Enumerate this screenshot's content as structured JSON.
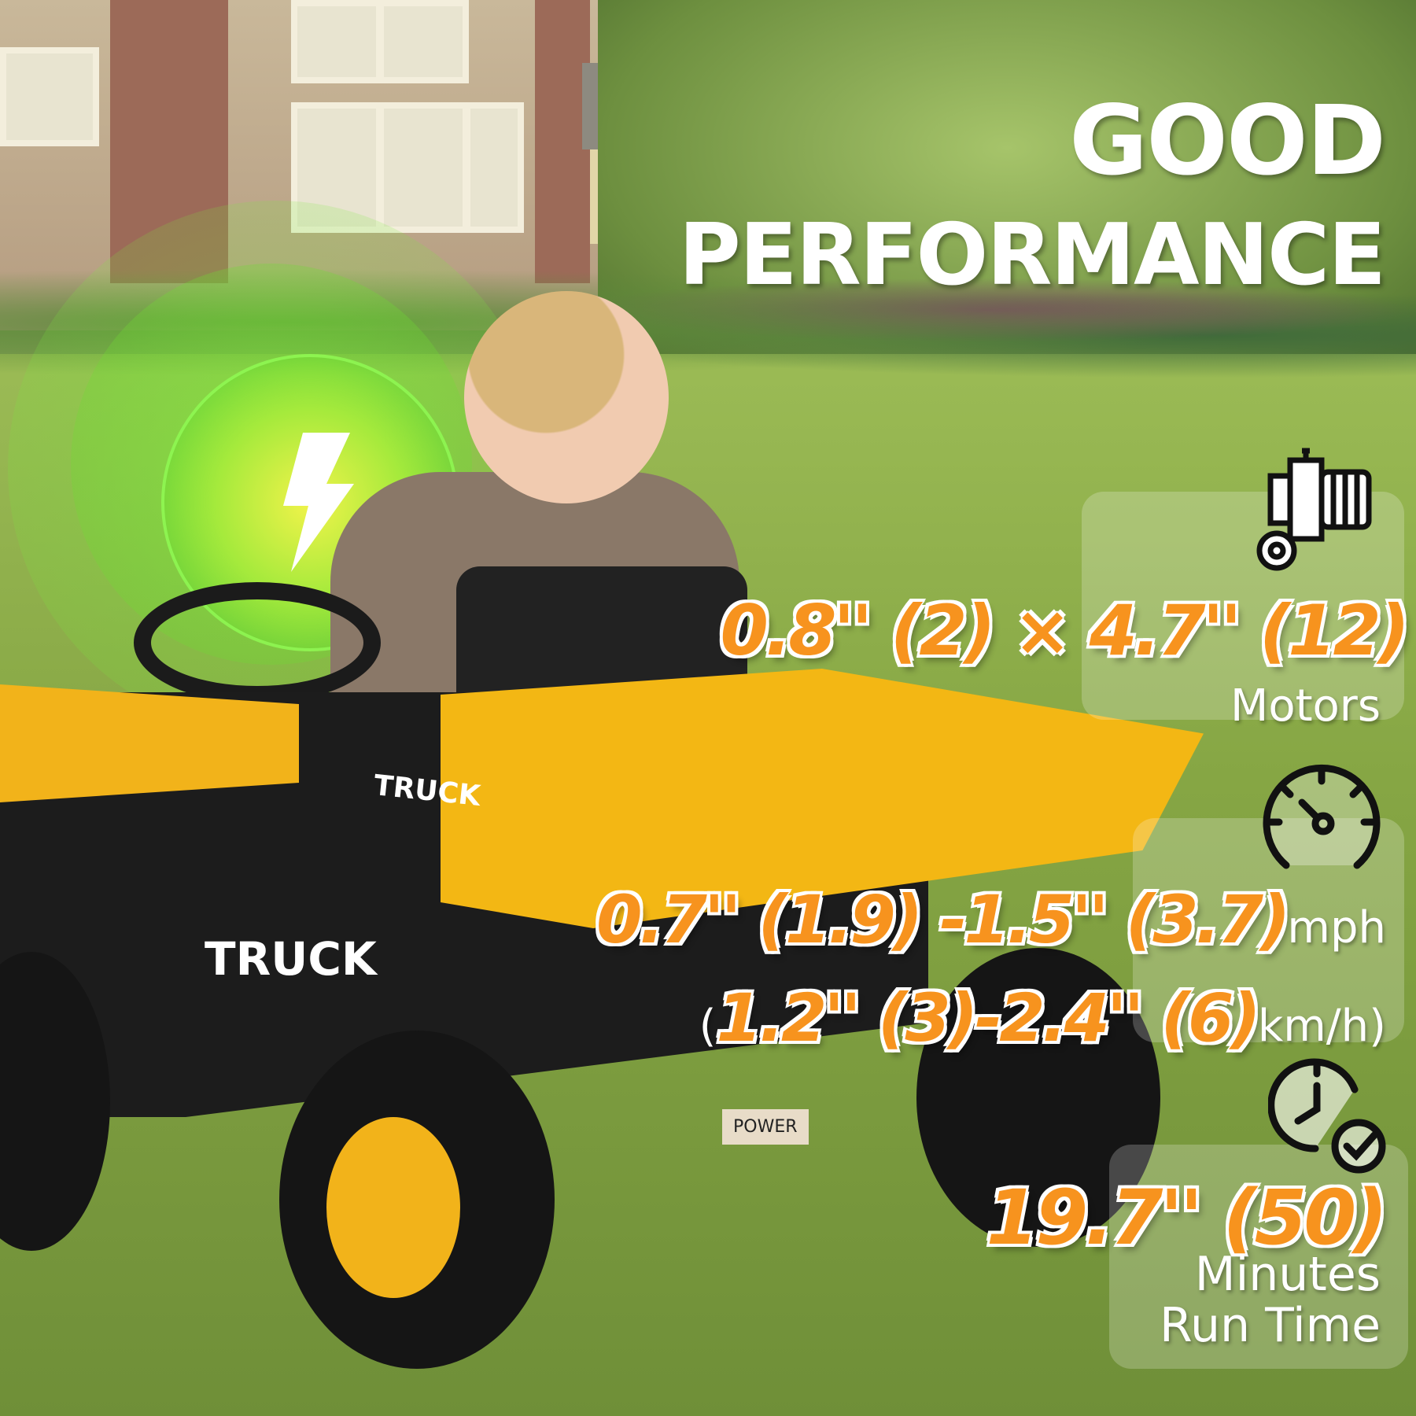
{
  "headline": {
    "line1": "GOOD",
    "line2": "PERFORMANCE"
  },
  "features": [
    {
      "icon": "motor-icon",
      "value": "0.8'' (2)  × 4.7'' (12)",
      "label": "Motors"
    },
    {
      "icon": "speedometer-icon",
      "value_line1": "0.7'' (1.9) -1.5'' (3.7)",
      "unit_line1": "mph",
      "prefix_line2": "(",
      "value_line2": "1.2'' (3)-2.4'' (6)",
      "unit_line2": "km/h)"
    },
    {
      "icon": "clock-check-icon",
      "value": "19.7'' (50)",
      "label_line1": "Minutes",
      "label_line2": "Run Time"
    }
  ],
  "product_text": {
    "side_decal": "TRUCK",
    "front_decal": "TRUCK",
    "button": "POWER"
  },
  "colors": {
    "accent_orange": "#f7931e",
    "truck_yellow": "#f2b31a",
    "glow_green": "#7bea3a",
    "bolt_yellow": "#f7f24a"
  },
  "badge_icon": "lightning-bolt-icon"
}
